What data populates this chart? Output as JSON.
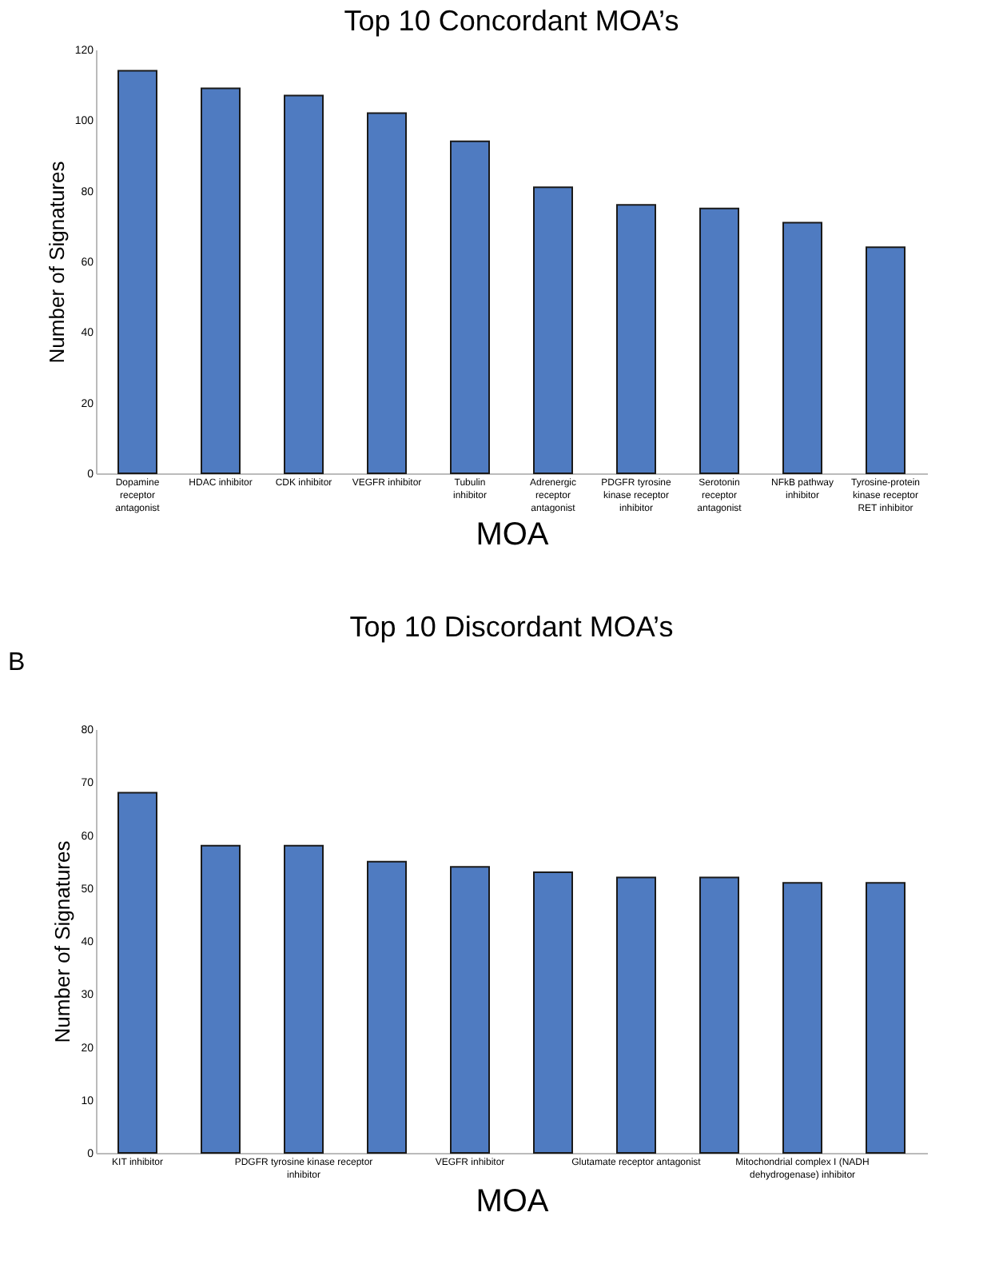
{
  "chart_data": [
    {
      "type": "bar",
      "title": "Top 10 Concordant MOA’s",
      "xlabel": "MOA",
      "ylabel": "Number of Signatures",
      "categories": [
        "Dopamine receptor antagonist",
        "HDAC inhibitor",
        "CDK inhibitor",
        "VEGFR inhibitor",
        "Tubulin inhibitor",
        "Adrenergic receptor antagonist",
        "PDGFR tyrosine kinase receptor inhibitor",
        "Serotonin receptor antagonist",
        "NFkB pathway inhibitor",
        "Tyrosine-protein kinase receptor RET inhibitor"
      ],
      "values": [
        114,
        109,
        107,
        102,
        94,
        81,
        76,
        75,
        71,
        64
      ],
      "color": "#4f7bc1",
      "ylim": [
        0,
        120
      ],
      "yticks": [
        0,
        20,
        40,
        60,
        80,
        100,
        120
      ],
      "grid": false
    },
    {
      "type": "bar",
      "title": "Top 10 Discordant MOA’s",
      "xlabel": "MOA",
      "ylabel": "Number of Signatures",
      "annotations": [
        "B"
      ],
      "categories": [
        "KIT inhibitor",
        null,
        "PDGFR tyrosine kinase receptor inhibitor",
        null,
        "VEGFR inhibitor",
        null,
        "Glutamate receptor antagonist",
        null,
        "Mitochondrial complex I (NADH dehydrogenase) inhibitor",
        null
      ],
      "values": [
        68,
        58,
        58,
        55,
        54,
        53,
        52,
        52,
        51,
        51
      ],
      "color": "#4f7bc1",
      "ylim": [
        0,
        80
      ],
      "yticks": [
        0,
        10,
        20,
        30,
        40,
        50,
        60,
        70,
        80
      ],
      "grid": false
    }
  ]
}
